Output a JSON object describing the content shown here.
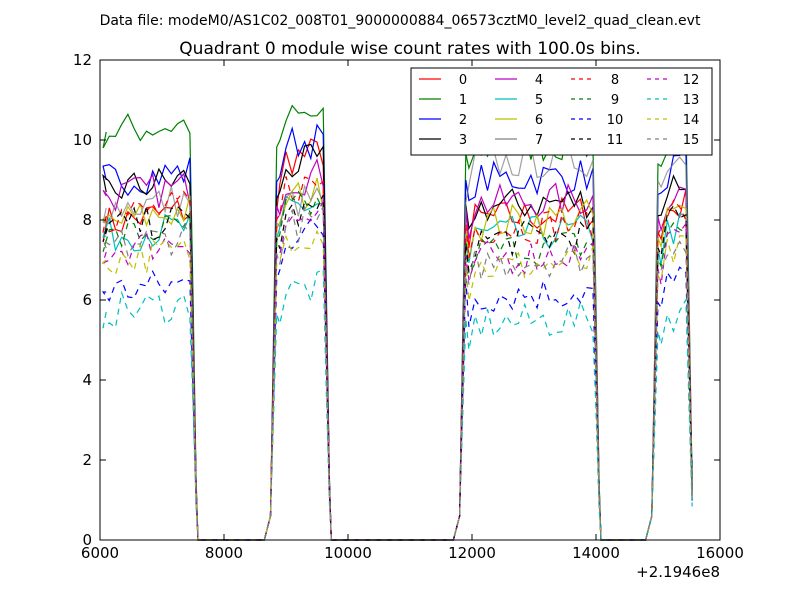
{
  "chart_data": {
    "type": "line",
    "suptitle": "Data file: modeM0/AS1C02_008T01_9000000884_06573cztM0_level2_quad_clean.evt",
    "title": "Quadrant 0 module wise count rates with 100.0s bins.",
    "xlabel": "",
    "ylabel": "",
    "x_offset_label": "+2.1946e8",
    "xlim": [
      6000,
      16000
    ],
    "ylim": [
      0,
      12
    ],
    "xticks": [
      6000,
      8000,
      10000,
      12000,
      14000,
      16000
    ],
    "yticks": [
      0,
      2,
      4,
      6,
      8,
      10,
      12
    ],
    "grid": false,
    "legend_position": "top-right",
    "legend_columns": 4,
    "x_segments": [
      [
        6050,
        7450
      ],
      [
        8900,
        9600
      ],
      [
        11950,
        13950
      ],
      [
        15050,
        15450
      ]
    ],
    "series": [
      {
        "name": "0",
        "color": "#ff0000",
        "dash": "solid",
        "levels": [
          7.9,
          9.5,
          8.0,
          8.2
        ]
      },
      {
        "name": "1",
        "color": "#008000",
        "dash": "solid",
        "levels": [
          10.2,
          10.5,
          9.8,
          10.0
        ]
      },
      {
        "name": "2",
        "color": "#0000ff",
        "dash": "solid",
        "levels": [
          9.0,
          9.9,
          9.0,
          9.2
        ]
      },
      {
        "name": "3",
        "color": "#000000",
        "dash": "solid",
        "levels": [
          8.7,
          9.3,
          8.3,
          8.8
        ]
      },
      {
        "name": "4",
        "color": "#bf00bf",
        "dash": "solid",
        "levels": [
          8.6,
          9.0,
          8.4,
          8.6
        ]
      },
      {
        "name": "5",
        "color": "#00bfbf",
        "dash": "solid",
        "levels": [
          7.6,
          8.3,
          7.6,
          7.7
        ]
      },
      {
        "name": "6",
        "color": "#bfbf00",
        "dash": "solid",
        "levels": [
          7.9,
          8.5,
          7.9,
          8.0
        ]
      },
      {
        "name": "7",
        "color": "#808080",
        "dash": "solid",
        "levels": [
          8.3,
          8.4,
          9.4,
          9.5
        ]
      },
      {
        "name": "8",
        "color": "#ff0000",
        "dash": "dashed",
        "levels": [
          8.1,
          8.8,
          7.8,
          8.3
        ]
      },
      {
        "name": "9",
        "color": "#008000",
        "dash": "dashed",
        "levels": [
          7.5,
          8.2,
          7.2,
          7.6
        ]
      },
      {
        "name": "10",
        "color": "#0000ff",
        "dash": "dashed",
        "levels": [
          6.2,
          7.6,
          6.1,
          6.4
        ]
      },
      {
        "name": "11",
        "color": "#000000",
        "dash": "dashed",
        "levels": [
          7.8,
          8.1,
          7.5,
          7.9
        ]
      },
      {
        "name": "12",
        "color": "#bf00bf",
        "dash": "dashed",
        "levels": [
          7.2,
          7.9,
          7.0,
          7.3
        ]
      },
      {
        "name": "13",
        "color": "#00bfbf",
        "dash": "dashed",
        "levels": [
          5.7,
          6.2,
          5.4,
          5.6
        ]
      },
      {
        "name": "14",
        "color": "#bfbf00",
        "dash": "dashed",
        "levels": [
          7.0,
          7.6,
          6.8,
          7.1
        ]
      },
      {
        "name": "15",
        "color": "#808080",
        "dash": "dashed",
        "levels": [
          7.3,
          7.8,
          6.9,
          7.4
        ]
      }
    ]
  }
}
